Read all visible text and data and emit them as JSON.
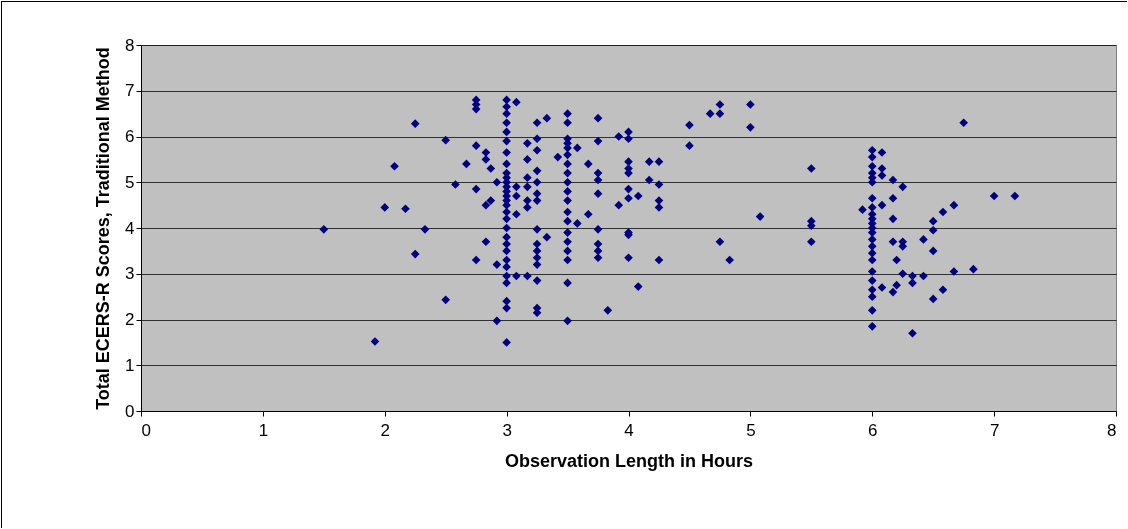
{
  "chart_data": {
    "type": "scatter",
    "xlabel": "Observation Length in Hours",
    "ylabel": "Total ECERS-R Scores, Traditional Method",
    "marker": "diamond",
    "grid": "y",
    "xlim": [
      0,
      8
    ],
    "xticks": [
      0,
      1,
      2,
      3,
      4,
      5,
      6,
      7,
      8
    ],
    "ylim": [
      0,
      8
    ],
    "yticks": [
      0,
      1,
      2,
      3,
      4,
      5,
      6,
      7,
      8
    ],
    "series": [
      {
        "color": "#000080",
        "x": [
          1.5,
          1.92,
          2.0,
          2.08,
          2.17,
          2.25,
          2.25,
          2.33,
          2.5,
          2.5,
          2.58,
          2.67,
          2.75,
          2.75,
          2.75,
          2.75,
          2.75,
          2.75,
          2.83,
          2.83,
          2.83,
          2.83,
          2.87,
          2.87,
          2.92,
          2.92,
          2.92,
          3,
          3,
          3,
          3,
          3,
          3,
          3,
          3,
          3,
          3,
          3,
          3,
          3,
          3,
          3,
          3,
          3,
          3,
          3,
          3,
          3,
          3,
          3,
          3,
          3,
          3,
          3,
          3,
          3,
          3.08,
          3.08,
          3.08,
          3.08,
          3.08,
          3.17,
          3.17,
          3.17,
          3.17,
          3.17,
          3.17,
          3.17,
          3.25,
          3.25,
          3.25,
          3.25,
          3.25,
          3.25,
          3.25,
          3.25,
          3.25,
          3.25,
          3.25,
          3.25,
          3.25,
          3.25,
          3.25,
          3.33,
          3.33,
          3.42,
          3.5,
          3.5,
          3.5,
          3.5,
          3.5,
          3.5,
          3.5,
          3.5,
          3.5,
          3.5,
          3.5,
          3.5,
          3.5,
          3.5,
          3.5,
          3.5,
          3.5,
          3.5,
          3.5,
          3.58,
          3.58,
          3.67,
          3.67,
          3.75,
          3.75,
          3.75,
          3.75,
          3.75,
          3.75,
          3.75,
          3.75,
          3.75,
          3.83,
          3.92,
          3.92,
          4,
          4,
          4,
          4,
          4,
          4,
          4,
          4,
          4,
          4,
          4.08,
          4.08,
          4.17,
          4.17,
          4.25,
          4.25,
          4.25,
          4.25,
          4.25,
          4.5,
          4.5,
          4.67,
          4.75,
          4.75,
          4.75,
          4.83,
          5,
          5,
          5.08,
          5.5,
          5.5,
          5.5,
          5.5,
          5.92,
          6,
          6,
          6,
          6,
          6,
          6,
          6,
          6,
          6,
          6,
          6,
          6,
          6,
          6,
          6,
          6,
          6,
          6,
          6,
          6,
          6,
          6,
          6,
          6.08,
          6.08,
          6.08,
          6.08,
          6.08,
          6.17,
          6.17,
          6.17,
          6.17,
          6.17,
          6.2,
          6.2,
          6.25,
          6.25,
          6.25,
          6.25,
          6.33,
          6.33,
          6.33,
          6.42,
          6.42,
          6.5,
          6.5,
          6.5,
          6.5,
          6.58,
          6.58,
          6.67,
          6.67,
          6.75,
          6.83,
          7,
          7.17
        ],
        "values": [
          3.97,
          1.52,
          4.45,
          5.35,
          4.42,
          6.28,
          3.43,
          3.97,
          2.43,
          5.92,
          4.95,
          5.4,
          6.8,
          6.7,
          6.6,
          5.8,
          4.85,
          3.3,
          5.65,
          5.5,
          4.5,
          3.7,
          5.3,
          4.6,
          3.2,
          1.97,
          5.0,
          6.8,
          6.65,
          6.5,
          6.3,
          6.1,
          5.9,
          5.65,
          5.4,
          5.2,
          5.1,
          5.0,
          4.9,
          4.8,
          4.7,
          4.6,
          4.5,
          4.35,
          4.2,
          4.0,
          3.8,
          3.65,
          3.5,
          3.3,
          3.15,
          2.95,
          2.8,
          2.4,
          2.25,
          1.5,
          6.75,
          4.3,
          4.7,
          2.95,
          4.9,
          5.85,
          5.5,
          5.1,
          4.6,
          4.9,
          2.95,
          4.45,
          6.3,
          5.95,
          5.7,
          5.25,
          5.0,
          4.6,
          3.97,
          3.65,
          3.5,
          3.35,
          3.2,
          2.85,
          2.25,
          2.15,
          4.75,
          6.4,
          3.8,
          5.55,
          6.5,
          6.3,
          5.95,
          5.85,
          5.75,
          5.6,
          5.4,
          5.2,
          5.0,
          4.8,
          4.6,
          4.35,
          4.15,
          3.9,
          3.7,
          3.5,
          3.3,
          2.8,
          1.97,
          5.75,
          4.1,
          5.4,
          4.3,
          6.4,
          5.9,
          5.2,
          5.05,
          4.75,
          3.97,
          3.65,
          3.5,
          3.35,
          2.2,
          4.5,
          6.0,
          6.1,
          5.95,
          5.45,
          5.3,
          5.2,
          4.85,
          4.65,
          3.9,
          3.85,
          3.35,
          4.7,
          2.72,
          5.45,
          5.05,
          5.45,
          4.95,
          4.6,
          4.45,
          3.3,
          6.25,
          5.8,
          6.5,
          6.7,
          6.5,
          3.7,
          3.3,
          6.7,
          6.2,
          4.25,
          5.3,
          4.15,
          4.05,
          3.7,
          4.4,
          5.7,
          5.55,
          5.35,
          5.2,
          5.1,
          5.0,
          4.65,
          4.45,
          4.3,
          4.2,
          4.1,
          4.0,
          3.9,
          3.75,
          3.6,
          3.45,
          3.3,
          3.05,
          2.85,
          2.65,
          2.5,
          2.2,
          1.85,
          5.65,
          5.3,
          5.15,
          4.5,
          2.7,
          4.65,
          4.2,
          3.7,
          2.6,
          5.05,
          3.3,
          2.75,
          3.7,
          4.9,
          3.0,
          3.6,
          2.95,
          2.8,
          1.7,
          3.75,
          2.95,
          4.15,
          3.95,
          3.5,
          2.45,
          4.35,
          2.65,
          4.5,
          3.05,
          6.3,
          3.1,
          4.7,
          4.7
        ]
      }
    ]
  }
}
